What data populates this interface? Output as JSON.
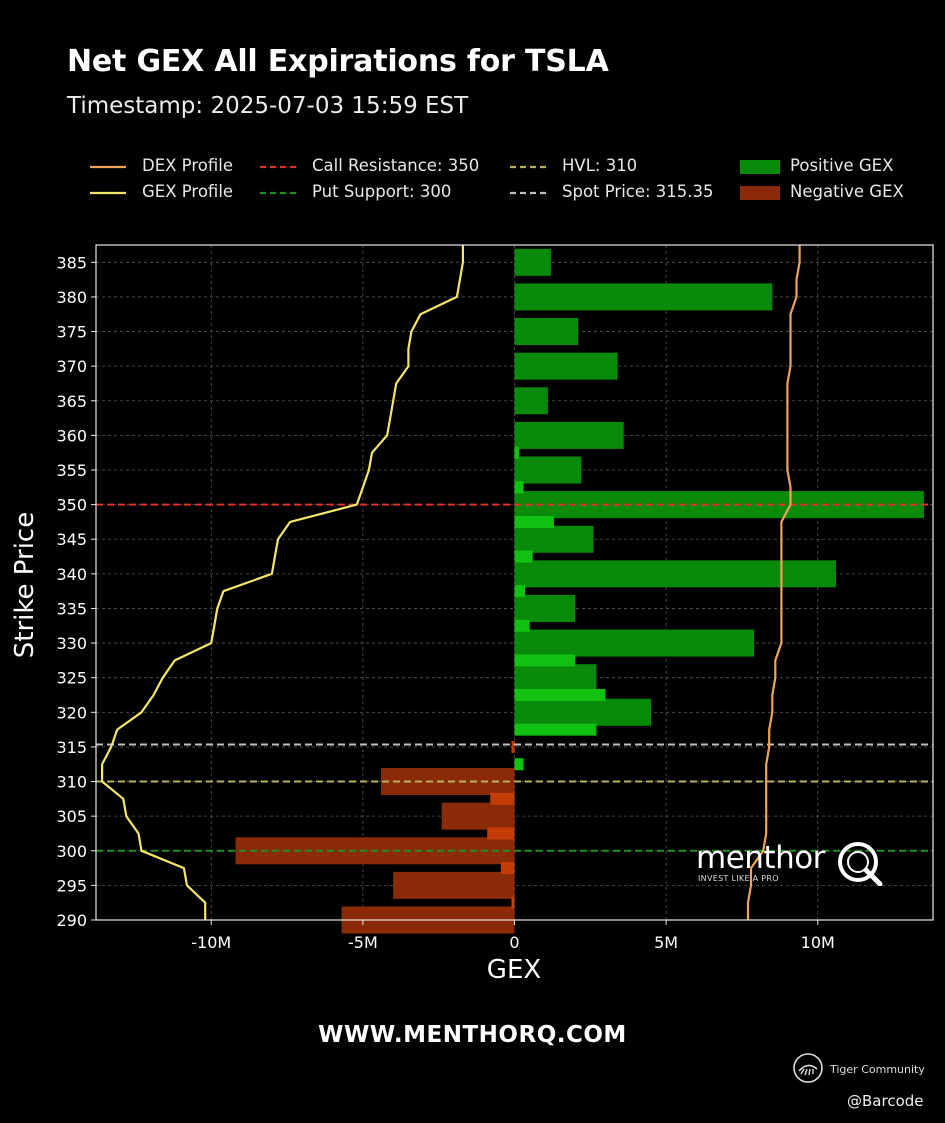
{
  "header": {
    "title": "Net GEX All Expirations for TSLA",
    "subtitle": "Timestamp: 2025-07-03 15:59 EST"
  },
  "legend": [
    {
      "label": "DEX Profile",
      "style": "solid",
      "color": "#f0a35b",
      "type": "line"
    },
    {
      "label": "Call Resistance: 350",
      "style": "dashed",
      "color": "#e0302b",
      "type": "line"
    },
    {
      "label": "HVL: 310",
      "style": "dashed",
      "color": "#b8b05a",
      "type": "line"
    },
    {
      "label": "Positive GEX",
      "style": "patch",
      "color": "#0a8a0a",
      "type": "patch"
    },
    {
      "label": "GEX Profile",
      "style": "solid",
      "color": "#f5e66a",
      "type": "line"
    },
    {
      "label": "Put Support: 300",
      "style": "dashed",
      "color": "#1f8f1f",
      "type": "line"
    },
    {
      "label": "Spot Price: 315.35",
      "style": "dashed",
      "color": "#c0c0c0",
      "type": "line"
    },
    {
      "label": "Negative GEX",
      "style": "patch",
      "color": "#8b2a08",
      "type": "patch"
    }
  ],
  "chart_data": {
    "type": "bar",
    "orientation": "horizontal",
    "xlabel": "GEX",
    "ylabel": "Strike Price",
    "xlim": [
      -13.8,
      13.8
    ],
    "ylim": [
      290,
      387.5
    ],
    "x_unit": "M",
    "xticks": [
      -10,
      -5,
      0,
      5,
      10
    ],
    "xtick_labels": [
      "-10M",
      "-5M",
      "0",
      "5M",
      "10M"
    ],
    "yticks": [
      290,
      295,
      300,
      305,
      310,
      315,
      320,
      325,
      330,
      335,
      340,
      345,
      350,
      355,
      360,
      365,
      370,
      375,
      380,
      385
    ],
    "grid": true,
    "colors": {
      "positive_major": "#0a8a0a",
      "positive_minor": "#12c212",
      "negative_major": "#8b2a08",
      "negative_minor": "#c43c08",
      "gex_profile": "#f5e66a",
      "dex_profile": "#f0a35b"
    },
    "bars_major": [
      {
        "strike": 385,
        "gex": 1.2
      },
      {
        "strike": 380,
        "gex": 8.5
      },
      {
        "strike": 375,
        "gex": 2.1
      },
      {
        "strike": 370,
        "gex": 3.4
      },
      {
        "strike": 365,
        "gex": 1.1
      },
      {
        "strike": 360,
        "gex": 3.6
      },
      {
        "strike": 355,
        "gex": 2.2
      },
      {
        "strike": 350,
        "gex": 13.5
      },
      {
        "strike": 345,
        "gex": 2.6
      },
      {
        "strike": 340,
        "gex": 10.6
      },
      {
        "strike": 335,
        "gex": 2.0
      },
      {
        "strike": 330,
        "gex": 7.9
      },
      {
        "strike": 325,
        "gex": 2.7
      },
      {
        "strike": 320,
        "gex": 4.5
      },
      {
        "strike": 310,
        "gex": -4.4
      },
      {
        "strike": 305,
        "gex": -2.4
      },
      {
        "strike": 300,
        "gex": -9.2
      },
      {
        "strike": 295,
        "gex": -4.0
      },
      {
        "strike": 290,
        "gex": -5.7
      }
    ],
    "bars_minor": [
      {
        "strike": 357.5,
        "gex": 0.15
      },
      {
        "strike": 352.5,
        "gex": 0.3
      },
      {
        "strike": 347.5,
        "gex": 1.3
      },
      {
        "strike": 342.5,
        "gex": 0.6
      },
      {
        "strike": 337.5,
        "gex": 0.35
      },
      {
        "strike": 332.5,
        "gex": 0.5
      },
      {
        "strike": 327.5,
        "gex": 2.0
      },
      {
        "strike": 322.5,
        "gex": 3.0
      },
      {
        "strike": 317.5,
        "gex": 2.7
      },
      {
        "strike": 312.5,
        "gex": 0.3
      },
      {
        "strike": 315,
        "gex": -0.1
      },
      {
        "strike": 307.5,
        "gex": -0.8
      },
      {
        "strike": 302.5,
        "gex": -0.9
      },
      {
        "strike": 297.5,
        "gex": -0.45
      },
      {
        "strike": 292.5,
        "gex": -0.1
      }
    ],
    "gex_profile": [
      [
        -1.7,
        387.5
      ],
      [
        -1.7,
        385
      ],
      [
        -1.8,
        382.5
      ],
      [
        -1.9,
        380
      ],
      [
        -3.1,
        377.5
      ],
      [
        -3.4,
        375
      ],
      [
        -3.5,
        372.5
      ],
      [
        -3.5,
        370
      ],
      [
        -3.9,
        367.5
      ],
      [
        -4.0,
        365
      ],
      [
        -4.1,
        362.5
      ],
      [
        -4.2,
        360
      ],
      [
        -4.7,
        357.5
      ],
      [
        -4.8,
        355
      ],
      [
        -5.0,
        352.5
      ],
      [
        -5.2,
        350
      ],
      [
        -7.4,
        347.5
      ],
      [
        -7.8,
        345
      ],
      [
        -7.9,
        342.5
      ],
      [
        -8.0,
        340
      ],
      [
        -9.6,
        337.5
      ],
      [
        -9.8,
        335
      ],
      [
        -9.9,
        332.5
      ],
      [
        -10.0,
        330
      ],
      [
        -11.2,
        327.5
      ],
      [
        -11.6,
        325
      ],
      [
        -11.9,
        322.5
      ],
      [
        -12.3,
        320
      ],
      [
        -13.1,
        317.5
      ],
      [
        -13.3,
        315
      ],
      [
        -13.6,
        312.5
      ],
      [
        -13.6,
        310
      ],
      [
        -12.9,
        307.5
      ],
      [
        -12.8,
        305
      ],
      [
        -12.4,
        302.5
      ],
      [
        -12.3,
        300
      ],
      [
        -10.9,
        297.5
      ],
      [
        -10.8,
        295
      ],
      [
        -10.2,
        292.5
      ],
      [
        -10.2,
        290
      ]
    ],
    "dex_profile": [
      [
        9.4,
        387.5
      ],
      [
        9.4,
        385
      ],
      [
        9.3,
        382.5
      ],
      [
        9.3,
        380
      ],
      [
        9.1,
        377.5
      ],
      [
        9.1,
        375
      ],
      [
        9.1,
        372.5
      ],
      [
        9.1,
        370
      ],
      [
        9.0,
        367.5
      ],
      [
        9.0,
        365
      ],
      [
        9.0,
        362.5
      ],
      [
        9.0,
        360
      ],
      [
        9.0,
        357.5
      ],
      [
        9.0,
        355
      ],
      [
        9.1,
        352.5
      ],
      [
        9.1,
        350
      ],
      [
        8.8,
        347.5
      ],
      [
        8.8,
        345
      ],
      [
        8.8,
        342.5
      ],
      [
        8.8,
        340
      ],
      [
        8.8,
        337.5
      ],
      [
        8.8,
        335
      ],
      [
        8.8,
        332.5
      ],
      [
        8.8,
        330
      ],
      [
        8.6,
        327.5
      ],
      [
        8.6,
        325
      ],
      [
        8.5,
        322.5
      ],
      [
        8.5,
        320
      ],
      [
        8.4,
        317.5
      ],
      [
        8.4,
        315
      ],
      [
        8.3,
        312.5
      ],
      [
        8.3,
        310
      ],
      [
        8.3,
        307.5
      ],
      [
        8.3,
        305
      ],
      [
        8.3,
        302.5
      ],
      [
        8.2,
        300
      ],
      [
        7.8,
        297.5
      ],
      [
        7.8,
        295
      ],
      [
        7.7,
        292.5
      ],
      [
        7.7,
        290
      ]
    ],
    "reference_lines": [
      {
        "name": "call-resistance-line",
        "y": 350,
        "color": "#e0302b"
      },
      {
        "name": "spot-price-line",
        "y": 315.35,
        "color": "#c0c0c0"
      },
      {
        "name": "hvl-line",
        "y": 310,
        "color": "#b8b05a"
      },
      {
        "name": "put-support-line",
        "y": 300,
        "color": "#1f8f1f"
      }
    ]
  },
  "watermark": {
    "brand": "menthor",
    "tagline": "INVEST LIKE A PRO"
  },
  "footer": {
    "website": "WWW.MENTHORQ.COM",
    "community": "Tiger Community",
    "handle": "@Barcode"
  }
}
